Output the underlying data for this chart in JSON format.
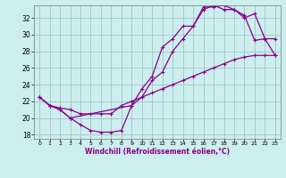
{
  "xlabel": "Windchill (Refroidissement éolien,°C)",
  "background_color": "#cceeee",
  "grid_color": "#99bbbb",
  "line_color": "#880088",
  "xlim": [
    -0.5,
    23.5
  ],
  "ylim": [
    17.5,
    33.5
  ],
  "xticks": [
    0,
    1,
    2,
    3,
    4,
    5,
    6,
    7,
    8,
    9,
    10,
    11,
    12,
    13,
    14,
    15,
    16,
    17,
    18,
    19,
    20,
    21,
    22,
    23
  ],
  "yticks": [
    18,
    20,
    22,
    24,
    26,
    28,
    30,
    32
  ],
  "line1_x": [
    0,
    1,
    2,
    3,
    4,
    5,
    6,
    7,
    8,
    9,
    10,
    11,
    12,
    13,
    14,
    15,
    16,
    17,
    18,
    19,
    20,
    21,
    22,
    23
  ],
  "line1_y": [
    22.5,
    21.5,
    21.0,
    20.0,
    19.2,
    18.5,
    18.3,
    18.3,
    18.5,
    21.5,
    23.5,
    25.0,
    28.5,
    29.5,
    31.0,
    31.0,
    33.3,
    33.3,
    33.5,
    33.0,
    32.3,
    29.3,
    29.5,
    27.5
  ],
  "line2_x": [
    0,
    1,
    2,
    3,
    9,
    10,
    11,
    12,
    13,
    14,
    15,
    16,
    17,
    18,
    19,
    20,
    21,
    22,
    23
  ],
  "line2_y": [
    22.5,
    21.5,
    21.0,
    20.0,
    21.5,
    22.5,
    24.5,
    25.5,
    28.0,
    29.5,
    31.0,
    33.0,
    33.5,
    33.0,
    33.0,
    32.0,
    32.5,
    29.5,
    29.5
  ],
  "line3_x": [
    0,
    1,
    2,
    3,
    4,
    5,
    6,
    7,
    8,
    9,
    10,
    11,
    12,
    13,
    14,
    15,
    16,
    17,
    18,
    19,
    20,
    21,
    22,
    23
  ],
  "line3_y": [
    22.5,
    21.5,
    21.2,
    21.0,
    20.5,
    20.5,
    20.5,
    20.5,
    21.5,
    22.0,
    22.5,
    23.0,
    23.5,
    24.0,
    24.5,
    25.0,
    25.5,
    26.0,
    26.5,
    27.0,
    27.3,
    27.5,
    27.5,
    27.5
  ]
}
